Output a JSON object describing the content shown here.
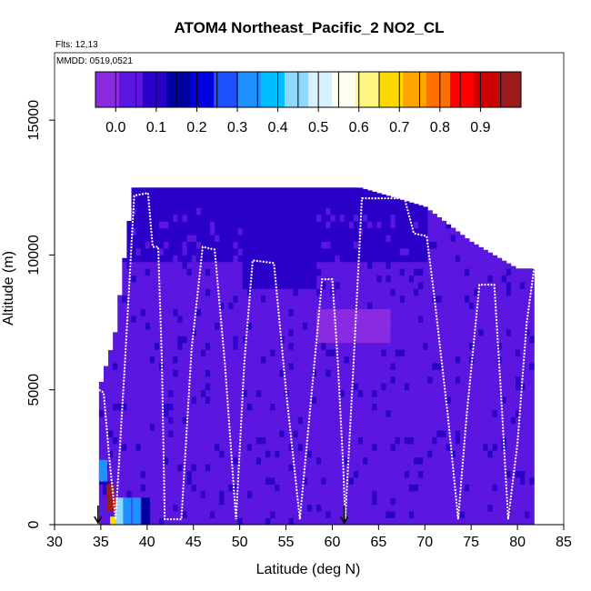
{
  "chart_data": {
    "type": "heatmap",
    "title": "ATOM4 Northeast_Pacific_2 NO2_CL",
    "flights_label": "Flts: 12,13",
    "dates_label": "MMDD: 0519,0521",
    "xlabel": "Latitude (deg N)",
    "ylabel": "Altitude (m)",
    "xlim": [
      30,
      85
    ],
    "ylim": [
      0,
      17500
    ],
    "x_ticks": [
      "30",
      "35",
      "40",
      "45",
      "50",
      "55",
      "60",
      "65",
      "70",
      "75",
      "80",
      "85"
    ],
    "y_ticks": [
      "0",
      "5000",
      "10000",
      "15000"
    ],
    "colorbar": {
      "ticks": [
        "0.0",
        "0.1",
        "0.2",
        "0.3",
        "0.4",
        "0.5",
        "0.6",
        "0.7",
        "0.8",
        "0.9"
      ],
      "range": [
        -0.05,
        1.0
      ],
      "colors": [
        "#8a2be2",
        "#5b16e0",
        "#2a00c8",
        "#0000a0",
        "#0000e0",
        "#1e50ff",
        "#1e90ff",
        "#00bfff",
        "#8fd8ff",
        "#d8f0ff",
        "#fffff0",
        "#fff680",
        "#ffd700",
        "#ffa500",
        "#ff7000",
        "#ff0000",
        "#cd0000",
        "#9b1c1c"
      ]
    },
    "profile_bounds": [
      {
        "lat": 34.8,
        "top": 5000
      },
      {
        "lat": 36.5,
        "top": 7000
      },
      {
        "lat": 38.5,
        "top": 12500
      },
      {
        "lat": 41.5,
        "top": 12500
      },
      {
        "lat": 48.0,
        "top": 12500
      },
      {
        "lat": 63.0,
        "top": 12500
      },
      {
        "lat": 65.0,
        "top": 12300
      },
      {
        "lat": 70.0,
        "top": 11800
      },
      {
        "lat": 75.0,
        "top": 10500
      },
      {
        "lat": 80.0,
        "top": 9500
      },
      {
        "lat": 81.8,
        "top": 9500
      }
    ],
    "flight_track": [
      [
        34.8,
        5000
      ],
      [
        35.3,
        4900
      ],
      [
        35.9,
        2500
      ],
      [
        36.6,
        200
      ],
      [
        37.6,
        6000
      ],
      [
        38.6,
        12200
      ],
      [
        40.1,
        12300
      ],
      [
        40.6,
        10300
      ],
      [
        41.2,
        10300
      ],
      [
        41.6,
        6000
      ],
      [
        41.9,
        200
      ],
      [
        43.7,
        200
      ],
      [
        44.8,
        6500
      ],
      [
        46.0,
        10300
      ],
      [
        47.3,
        10200
      ],
      [
        48.4,
        6000
      ],
      [
        49.6,
        200
      ],
      [
        50.5,
        6000
      ],
      [
        51.4,
        9800
      ],
      [
        53.7,
        9700
      ],
      [
        55.0,
        5000
      ],
      [
        56.5,
        200
      ],
      [
        57.8,
        5000
      ],
      [
        58.9,
        9100
      ],
      [
        60.0,
        9100
      ],
      [
        60.6,
        6000
      ],
      [
        61.2,
        2000
      ],
      [
        61.4,
        200
      ],
      [
        62.3,
        6000
      ],
      [
        63.2,
        12100
      ],
      [
        67.8,
        12100
      ],
      [
        68.8,
        10800
      ],
      [
        70.2,
        10700
      ],
      [
        71.0,
        8500
      ],
      [
        72.5,
        4000
      ],
      [
        73.6,
        200
      ],
      [
        74.5,
        4000
      ],
      [
        75.9,
        8900
      ],
      [
        77.5,
        8900
      ],
      [
        78.2,
        5000
      ],
      [
        79.0,
        200
      ],
      [
        80.0,
        3000
      ],
      [
        81.0,
        7500
      ],
      [
        81.8,
        9500
      ]
    ],
    "surface_patches": [
      {
        "lat": 34.8,
        "alt0": 1600,
        "alt1": 2400,
        "value": 0.3
      },
      {
        "lat": 35.2,
        "alt0": 1100,
        "alt1": 1600,
        "value": 0.1
      },
      {
        "lat": 35.6,
        "alt0": 500,
        "alt1": 1500,
        "value": 0.95
      },
      {
        "lat": 36.2,
        "alt0": 500,
        "alt1": 1000,
        "value": 0.9
      },
      {
        "lat": 36.0,
        "alt0": 0,
        "alt1": 300,
        "value": 0.7
      },
      {
        "lat": 36.6,
        "alt0": 0,
        "alt1": 1000,
        "value": 0.45
      },
      {
        "lat": 37.4,
        "alt0": 0,
        "alt1": 1000,
        "value": 0.35
      },
      {
        "lat": 38.4,
        "alt0": 0,
        "alt1": 1000,
        "value": 0.3
      },
      {
        "lat": 39.4,
        "alt0": 0,
        "alt1": 1000,
        "value": 0.15
      },
      {
        "lat": 40.4,
        "alt0": 0,
        "alt1": 1000,
        "value": 0.05
      }
    ],
    "markers": [
      {
        "lat": 34.7,
        "label": "arrow"
      },
      {
        "lat": 61.3,
        "label": "arrow"
      }
    ]
  }
}
